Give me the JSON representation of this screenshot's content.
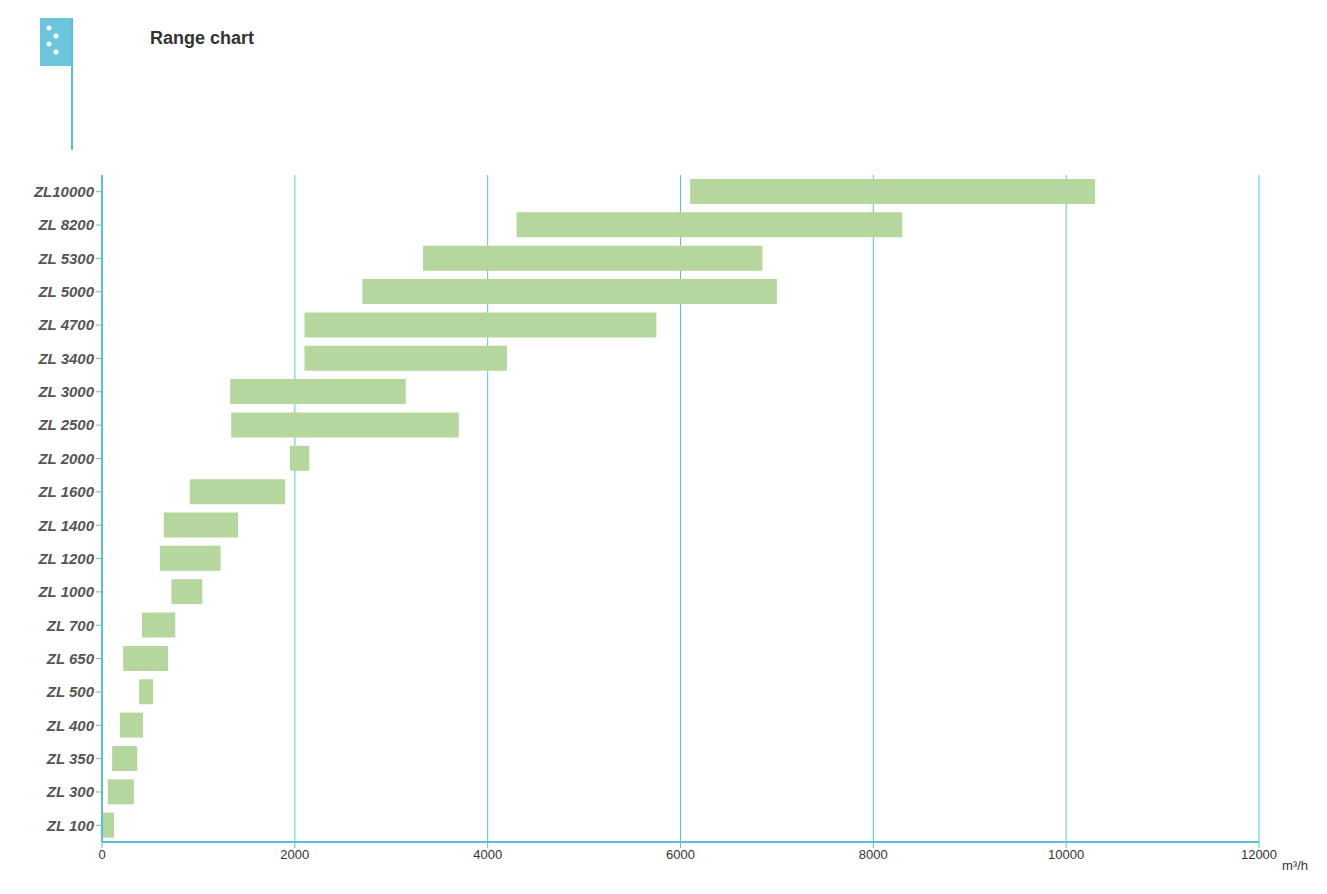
{
  "chart_data": {
    "type": "bar",
    "title": "Range chart",
    "orientation": "horizontal",
    "x_label": "m³/h",
    "categories": [
      "ZL10000",
      "ZL 8200",
      "ZL 5300",
      "ZL 5000",
      "ZL 4700",
      "ZL 3400",
      "ZL 3000",
      "ZL 2500",
      "ZL 2000",
      "ZL 1600",
      "ZL 1400",
      "ZL 1200",
      "ZL 1000",
      "ZL 700",
      "ZL 650",
      "ZL 500",
      "ZL 400",
      "ZL 350",
      "ZL 300",
      "ZL 100"
    ],
    "values": [
      [
        6100,
        10300
      ],
      [
        4300,
        8300
      ],
      [
        3330,
        6850
      ],
      [
        2700,
        7000
      ],
      [
        2100,
        5750
      ],
      [
        2100,
        4200
      ],
      [
        1330,
        3150
      ],
      [
        1340,
        3700
      ],
      [
        1950,
        2150
      ],
      [
        910,
        1900
      ],
      [
        640,
        1410
      ],
      [
        600,
        1230
      ],
      [
        720,
        1040
      ],
      [
        415,
        760
      ],
      [
        220,
        685
      ],
      [
        385,
        530
      ],
      [
        185,
        425
      ],
      [
        105,
        365
      ],
      [
        60,
        330
      ],
      [
        10,
        125
      ]
    ],
    "color": "#b5d69c",
    "xlim": [
      0,
      12000
    ],
    "xticks": [
      0,
      2000,
      4000,
      6000,
      8000,
      10000,
      12000
    ],
    "grid": true
  }
}
